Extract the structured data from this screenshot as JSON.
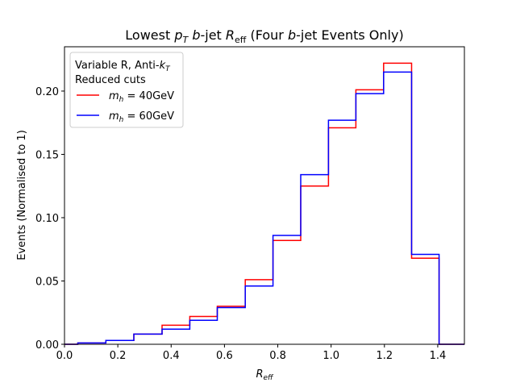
{
  "chart_data": {
    "type": "step-histogram",
    "title": {
      "part1": "Lowest ",
      "pT_main": "p",
      "pT_sub": "T",
      "part2": " ",
      "b_italic": "b",
      "part3": "-jet ",
      "R_main": "R",
      "R_sub": "eff",
      "part4": " (Four ",
      "b2_italic": "b",
      "part5": "-jet Events Only)"
    },
    "xlabel": {
      "main": "R",
      "sub": "eff"
    },
    "ylabel": "Events (Normalised to 1)",
    "xlim": [
      0.0,
      1.5
    ],
    "ylim": [
      0.0,
      0.235
    ],
    "xticks": [
      {
        "value": 0.0,
        "label": "0.0"
      },
      {
        "value": 0.2,
        "label": "0.2"
      },
      {
        "value": 0.4,
        "label": "0.4"
      },
      {
        "value": 0.6,
        "label": "0.6"
      },
      {
        "value": 0.8,
        "label": "0.8"
      },
      {
        "value": 1.0,
        "label": "1.0"
      },
      {
        "value": 1.2,
        "label": "1.2"
      },
      {
        "value": 1.4,
        "label": "1.4"
      }
    ],
    "yticks": [
      {
        "value": 0.0,
        "label": "0.00"
      },
      {
        "value": 0.05,
        "label": "0.05"
      },
      {
        "value": 0.1,
        "label": "0.10"
      },
      {
        "value": 0.15,
        "label": "0.15"
      },
      {
        "value": 0.2,
        "label": "0.20"
      }
    ],
    "bin_edges": [
      0.05,
      0.155,
      0.26,
      0.366,
      0.47,
      0.573,
      0.678,
      0.782,
      0.886,
      0.99,
      1.093,
      1.197,
      1.302,
      1.405
    ],
    "grid": false,
    "legend": {
      "placement": "top-left",
      "header_line1_prefix": "Variable R, Anti-",
      "header_k": "k",
      "header_k_sub": "T",
      "header_line2": "Reduced cuts"
    },
    "series": [
      {
        "name_var": "m",
        "name_sub": "h",
        "name_value": " = 40GeV",
        "color": "#ff0000",
        "values": [
          0.001,
          0.003,
          0.008,
          0.015,
          0.022,
          0.03,
          0.051,
          0.082,
          0.125,
          0.171,
          0.201,
          0.222,
          0.068
        ]
      },
      {
        "name_var": "m",
        "name_sub": "h",
        "name_value": " = 60GeV",
        "color": "#0000ff",
        "values": [
          0.001,
          0.003,
          0.008,
          0.012,
          0.019,
          0.029,
          0.046,
          0.086,
          0.134,
          0.177,
          0.198,
          0.215,
          0.071
        ]
      }
    ]
  }
}
